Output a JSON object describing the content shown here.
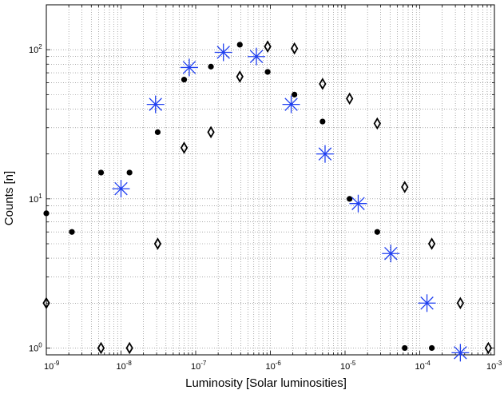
{
  "chart_data": {
    "type": "scatter",
    "title": "",
    "xlabel": "Luminosity [Solar luminosities]",
    "ylabel": "Counts [n]",
    "x_scale": "log",
    "y_scale": "log",
    "xlim": [
      1e-09,
      0.001
    ],
    "ylim": [
      0.9,
      200
    ],
    "grid": true,
    "x_ticks": [
      {
        "base": "10",
        "exp": "-9",
        "value": 1e-09
      },
      {
        "base": "10",
        "exp": "-8",
        "value": 1e-08
      },
      {
        "base": "10",
        "exp": "-7",
        "value": 1e-07
      },
      {
        "base": "10",
        "exp": "-6",
        "value": 1e-06
      },
      {
        "base": "10",
        "exp": "-5",
        "value": 1e-05
      },
      {
        "base": "10",
        "exp": "-4",
        "value": 0.0001
      },
      {
        "base": "10",
        "exp": "-3",
        "value": 0.001
      }
    ],
    "y_ticks": [
      {
        "base": "10",
        "exp": "0",
        "value": 1
      },
      {
        "base": "10",
        "exp": "1",
        "value": 10
      },
      {
        "base": "10",
        "exp": "2",
        "value": 100
      }
    ],
    "series": [
      {
        "marker": "dot",
        "color": "#000000",
        "x": [
          1e-09,
          2.2e-09,
          5.4e-09,
          1.3e-08,
          3.1e-08,
          7e-08,
          1.6e-07,
          3.9e-07,
          9.2e-07,
          2.1e-06,
          5e-06,
          1.15e-05,
          2.7e-05,
          6.3e-05,
          0.000145
        ],
        "y": [
          8,
          6,
          15,
          15,
          28,
          63,
          77,
          108,
          71,
          50,
          33,
          10,
          6,
          1,
          1
        ]
      },
      {
        "marker": "diamond",
        "color": "#000000",
        "x": [
          1e-09,
          5.4e-09,
          1.3e-08,
          3.1e-08,
          7e-08,
          1.6e-07,
          3.9e-07,
          9.2e-07,
          2.1e-06,
          5e-06,
          1.15e-05,
          2.7e-05,
          6.3e-05,
          0.000145,
          0.00035,
          0.00083
        ],
        "y": [
          2,
          1,
          1,
          5,
          22,
          28,
          66,
          105,
          102,
          59,
          47,
          32,
          12,
          5,
          2,
          1
        ]
      },
      {
        "marker": "asterisk",
        "color": "#1f3ff0",
        "x": [
          1e-08,
          2.9e-08,
          8.2e-08,
          2.35e-07,
          6.5e-07,
          1.9e-06,
          5.4e-06,
          1.5e-05,
          4.1e-05,
          0.000125,
          0.00035
        ],
        "y": [
          11.7,
          43,
          76,
          96,
          90,
          43,
          20,
          9.3,
          4.3,
          2,
          0.93
        ]
      }
    ]
  }
}
